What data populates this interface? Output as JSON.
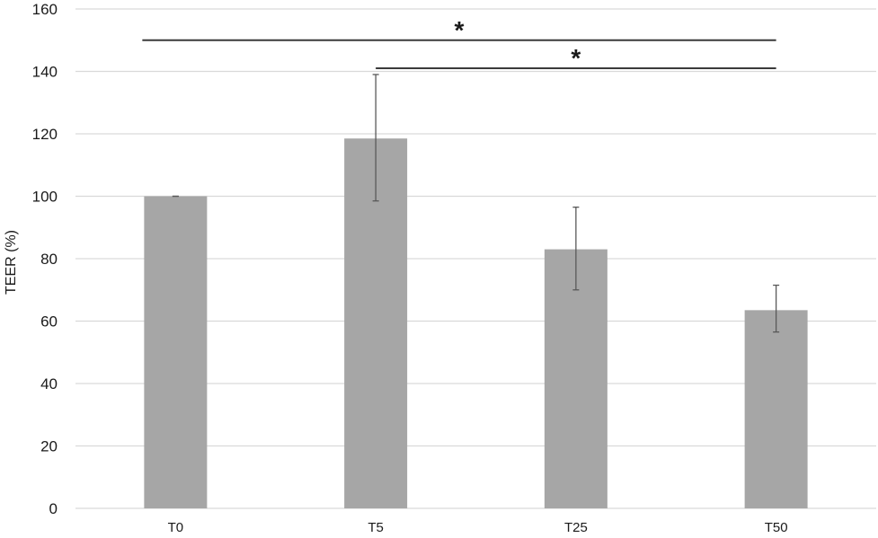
{
  "chart_data": {
    "type": "bar",
    "categories": [
      "T0",
      "T5",
      "T25",
      "T50"
    ],
    "values": [
      100,
      118.5,
      83,
      63.5
    ],
    "error_low": [
      100,
      98.5,
      70,
      56.5
    ],
    "error_high": [
      100,
      139,
      96.5,
      71.5
    ],
    "ylabel": "TEER (%)",
    "ylim": [
      0,
      160
    ],
    "yticks": [
      0,
      20,
      40,
      60,
      80,
      100,
      120,
      140,
      160
    ],
    "grid": true,
    "significance": [
      {
        "from": "T0",
        "to": "T50",
        "y": 150,
        "label": "*"
      },
      {
        "from": "T5",
        "to": "T50",
        "y": 141,
        "label": "*"
      }
    ],
    "colors": {
      "bar": "#a6a6a6",
      "grid": "#d9d9d9",
      "error": "#595959",
      "bracket": "#3a3a3a"
    }
  }
}
